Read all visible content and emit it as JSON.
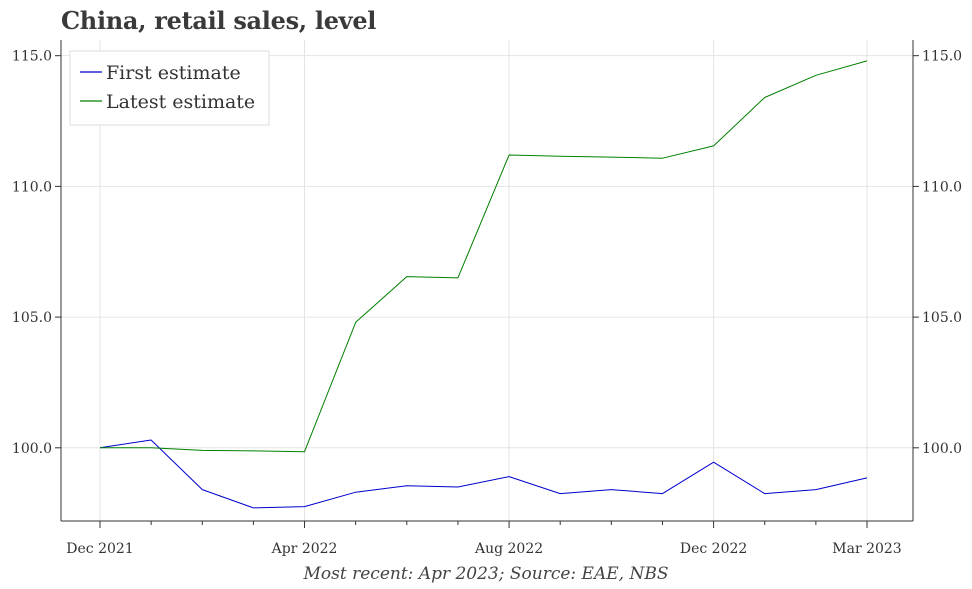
{
  "title": "China, retail sales, level",
  "footnote": "Most recent: Apr 2023; Source: EAE, NBS",
  "chart_data": {
    "type": "line",
    "title": "China, retail sales, level",
    "xlabel": "",
    "ylabel": "",
    "x": [
      "2021-12",
      "2022-01",
      "2022-02",
      "2022-03",
      "2022-04",
      "2022-05",
      "2022-06",
      "2022-07",
      "2022-08",
      "2022-09",
      "2022-10",
      "2022-11",
      "2022-12",
      "2023-01",
      "2023-02",
      "2023-03"
    ],
    "x_ticks": [
      {
        "x": "2021-12",
        "label": "Dec 2021"
      },
      {
        "x": "2022-04",
        "label": "Apr 2022"
      },
      {
        "x": "2022-08",
        "label": "Aug 2022"
      },
      {
        "x": "2022-12",
        "label": "Dec 2022"
      },
      {
        "x": "2023-03",
        "label": "Mar 2023"
      }
    ],
    "ylim": [
      97.2,
      115.6
    ],
    "y_ticks": [
      100.0,
      105.0,
      110.0,
      115.0
    ],
    "y_tick_labels": [
      "100.0",
      "105.0",
      "110.0",
      "115.0"
    ],
    "grid": true,
    "legend_position": "top-left",
    "series": [
      {
        "name": "First estimate",
        "color": "#0000cc",
        "values": [
          100.0,
          100.3,
          98.4,
          97.7,
          97.75,
          98.3,
          98.55,
          98.5,
          98.9,
          98.25,
          98.4,
          98.25,
          99.45,
          98.25,
          98.4,
          98.85
        ]
      },
      {
        "name": "Latest estimate",
        "color": "#008000",
        "values": [
          100.0,
          100.0,
          99.9,
          99.88,
          99.85,
          104.8,
          106.55,
          106.5,
          111.2,
          111.15,
          111.12,
          111.08,
          111.55,
          113.4,
          114.25,
          114.8
        ]
      }
    ]
  }
}
